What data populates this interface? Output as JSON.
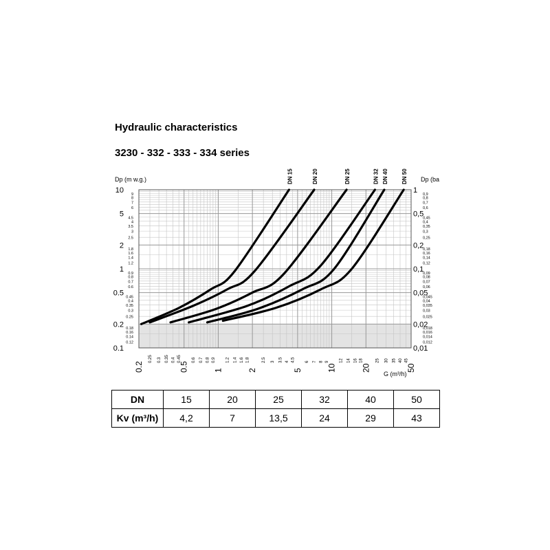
{
  "title": "Hydraulic characteristics",
  "subtitle": "3230 - 332 - 333 - 334 series",
  "chart_data": {
    "type": "line",
    "x_log": true,
    "y_log": true,
    "xlabel": "G (m³/h)",
    "ylabel_left": "Dp (m w.g.)",
    "ylabel_right": "Dp (ba",
    "xlim": [
      0.2,
      50
    ],
    "ylim": [
      0.1,
      10
    ],
    "ylim_right": [
      0.01,
      1
    ],
    "grid": true,
    "shaded_band": [
      0.1,
      0.2
    ],
    "x_major_ticks": [
      {
        "v": 0.2,
        "label": "0.2"
      },
      {
        "v": 0.5,
        "label": "0.5"
      },
      {
        "v": 1,
        "label": "1"
      },
      {
        "v": 2,
        "label": "2"
      },
      {
        "v": 5,
        "label": "5"
      },
      {
        "v": 10,
        "label": "10"
      },
      {
        "v": 20,
        "label": "20"
      },
      {
        "v": 50,
        "label": "50"
      }
    ],
    "x_minor_ticks": [
      {
        "v": 0.25,
        "label": "0.25"
      },
      {
        "v": 0.3,
        "label": "0.3"
      },
      {
        "v": 0.35,
        "label": "0.35"
      },
      {
        "v": 0.4,
        "label": "0.4"
      },
      {
        "v": 0.45,
        "label": "0.45"
      },
      {
        "v": 0.6,
        "label": "0.6"
      },
      {
        "v": 0.7,
        "label": "0.7"
      },
      {
        "v": 0.8,
        "label": "0.8"
      },
      {
        "v": 0.9,
        "label": "0.9"
      },
      {
        "v": 1.2,
        "label": "1.2"
      },
      {
        "v": 1.4,
        "label": "1.4"
      },
      {
        "v": 1.6,
        "label": "1.6"
      },
      {
        "v": 1.8,
        "label": "1.8"
      },
      {
        "v": 2.5,
        "label": "2.5"
      },
      {
        "v": 3,
        "label": "3"
      },
      {
        "v": 3.5,
        "label": "3.5"
      },
      {
        "v": 4,
        "label": "4"
      },
      {
        "v": 4.5,
        "label": "4.5"
      },
      {
        "v": 6,
        "label": "6"
      },
      {
        "v": 7,
        "label": "7"
      },
      {
        "v": 8,
        "label": "8"
      },
      {
        "v": 9,
        "label": "9"
      },
      {
        "v": 12,
        "label": "12"
      },
      {
        "v": 14,
        "label": "14"
      },
      {
        "v": 16,
        "label": "16"
      },
      {
        "v": 18,
        "label": "18"
      },
      {
        "v": 25,
        "label": "25"
      },
      {
        "v": 30,
        "label": "30"
      },
      {
        "v": 35,
        "label": "35"
      },
      {
        "v": 40,
        "label": "40"
      },
      {
        "v": 45,
        "label": "45"
      }
    ],
    "y_major_ticks": [
      {
        "v": 10,
        "label": "10",
        "right": "1"
      },
      {
        "v": 5,
        "label": "5",
        "right": "0,5"
      },
      {
        "v": 2,
        "label": "2",
        "right": "0,2"
      },
      {
        "v": 1,
        "label": "1",
        "right": "0,1"
      },
      {
        "v": 0.5,
        "label": "0.5",
        "right": "0,05"
      },
      {
        "v": 0.2,
        "label": "0.2",
        "right": "0,02"
      },
      {
        "v": 0.1,
        "label": "0.1",
        "right": "0,01"
      }
    ],
    "y_minor_ticks": [
      {
        "v": 9,
        "label": "9",
        "right": "0,9"
      },
      {
        "v": 8,
        "label": "8",
        "right": "0,8"
      },
      {
        "v": 7,
        "label": "7",
        "right": "0,7"
      },
      {
        "v": 6,
        "label": "6",
        "right": "0,6"
      },
      {
        "v": 4.5,
        "label": "4.5",
        "right": "0,45"
      },
      {
        "v": 4,
        "label": "4",
        "right": "0,4"
      },
      {
        "v": 3.5,
        "label": "3.5",
        "right": "0,35"
      },
      {
        "v": 3,
        "label": "3",
        "right": "0,3"
      },
      {
        "v": 2.5,
        "label": "2.5",
        "right": "0,25"
      },
      {
        "v": 1.8,
        "label": "1.8",
        "right": "0,18"
      },
      {
        "v": 1.6,
        "label": "1.6",
        "right": "0,16"
      },
      {
        "v": 1.4,
        "label": "1.4",
        "right": "0,14"
      },
      {
        "v": 1.2,
        "label": "1.2",
        "right": "0,12"
      },
      {
        "v": 0.9,
        "label": "0.9",
        "right": "0,09"
      },
      {
        "v": 0.8,
        "label": "0.8",
        "right": "0,08"
      },
      {
        "v": 0.7,
        "label": "0.7",
        "right": "0,07"
      },
      {
        "v": 0.6,
        "label": "0.6",
        "right": "0,06"
      },
      {
        "v": 0.45,
        "label": "0.45",
        "right": "0,045"
      },
      {
        "v": 0.4,
        "label": "0.4",
        "right": "0,04"
      },
      {
        "v": 0.35,
        "label": "0.35",
        "right": "0,035"
      },
      {
        "v": 0.3,
        "label": "0.3",
        "right": "0,03"
      },
      {
        "v": 0.25,
        "label": "0.25",
        "right": "0,025"
      },
      {
        "v": 0.18,
        "label": "0.18",
        "right": "0,018"
      },
      {
        "v": 0.16,
        "label": "0.16",
        "right": "0,016"
      },
      {
        "v": 0.14,
        "label": "0.14",
        "right": "0,014"
      },
      {
        "v": 0.12,
        "label": "0.12",
        "right": "0,012"
      }
    ],
    "series": [
      {
        "name": "DN 15",
        "x": [
          0.21,
          0.45,
          0.86,
          1.4,
          4.2
        ],
        "y": [
          0.2,
          0.32,
          0.55,
          0.94,
          10
        ]
      },
      {
        "name": "DN 20",
        "x": [
          0.25,
          0.6,
          1.2,
          2.1,
          7
        ],
        "y": [
          0.21,
          0.34,
          0.55,
          0.94,
          10
        ]
      },
      {
        "name": "DN 25",
        "x": [
          0.38,
          0.95,
          2.0,
          3.8,
          13.5
        ],
        "y": [
          0.21,
          0.31,
          0.5,
          0.87,
          10
        ]
      },
      {
        "name": "DN 32",
        "x": [
          0.55,
          1.8,
          4.2,
          8.0,
          24
        ],
        "y": [
          0.21,
          0.34,
          0.6,
          1.1,
          10
        ]
      },
      {
        "name": "DN 40",
        "x": [
          0.8,
          2.2,
          5.5,
          10.5,
          29
        ],
        "y": [
          0.21,
          0.31,
          0.55,
          1.0,
          10
        ]
      },
      {
        "name": "DN 50",
        "x": [
          1.1,
          3.2,
          8.0,
          15.0,
          43
        ],
        "y": [
          0.22,
          0.32,
          0.55,
          1.0,
          10
        ]
      }
    ]
  },
  "table": {
    "row1_label": "DN",
    "row1": [
      "15",
      "20",
      "25",
      "32",
      "40",
      "50"
    ],
    "row2_label": "Kv (m³/h)",
    "row2": [
      "4,2",
      "7",
      "13,5",
      "24",
      "29",
      "43"
    ]
  }
}
